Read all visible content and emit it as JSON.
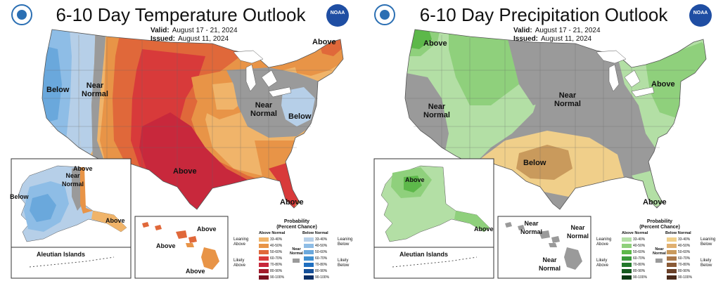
{
  "temperature": {
    "title": "6-10 Day Temperature Outlook",
    "valid_label": "Valid:",
    "valid_value": "August 17 - 21, 2024",
    "issued_label": "Issued:",
    "issued_value": "August 11, 2024",
    "labels": {
      "below_west": "Below",
      "near_west": "Near\nNormal",
      "near_east": "Near\nNormal",
      "below_east": "Below",
      "above_south": "Above",
      "above_ne": "Above",
      "above_fl": "Above",
      "ak_above": "Above",
      "ak_near": "Near\nNormal",
      "ak_below": "Below",
      "ak_above_se": "Above",
      "hi_above1": "Above",
      "hi_above2": "Above",
      "hi_above3": "Above",
      "aleutian": "Aleutian Islands"
    },
    "colors": {
      "below_33": "#b6cfe8",
      "below_40": "#8ebde6",
      "below_50": "#6aa8dc",
      "near": "#9a9a9a",
      "above_33": "#f0b46a",
      "above_40": "#e89447",
      "above_50": "#e0683a",
      "above_60": "#d83a3a",
      "above_70": "#c8283c"
    }
  },
  "precipitation": {
    "title": "6-10 Day Precipitation Outlook",
    "valid_label": "Valid:",
    "valid_value": "August 17 - 21, 2024",
    "issued_label": "Issued:",
    "issued_value": "August 11, 2024",
    "labels": {
      "above_nw": "Above",
      "near_west": "Near\nNormal",
      "near_central": "Near\nNormal",
      "above_east": "Above",
      "below_south": "Below",
      "above_fl": "Above",
      "ak_above": "Above",
      "ak_above_se": "Above",
      "hi_near1": "Near\nNormal",
      "hi_near2": "Near\nNormal",
      "hi_near3": "Near\nNormal",
      "aleutian": "Aleutian Islands"
    },
    "colors": {
      "above_33": "#b3dfa5",
      "above_40": "#8fd07c",
      "above_50": "#5db84a",
      "near": "#9a9a9a",
      "below_33": "#f0cf8a",
      "below_40": "#c99a5c"
    }
  },
  "legend": {
    "title": "Probability\n(Percent Chance)",
    "temp_left_header": "Above Normal",
    "temp_right_header": "Below Normal",
    "temp_left_top": "Leaning\nAbove",
    "temp_left_bottom": "Likely\nAbove",
    "temp_right_top": "Leaning\nBelow",
    "temp_right_bottom": "Likely\nBelow",
    "precip_left_top": "Leaning\nAbove",
    "precip_left_bottom": "Likely\nAbove",
    "precip_right_top": "Leaning\nBelow",
    "precip_right_bottom": "Likely\nBelow",
    "near": "Near\nNormal",
    "ranges": [
      "33-40%",
      "40-50%",
      "50-60%",
      "60-70%",
      "70-80%",
      "80-90%",
      "90-100%"
    ],
    "temp_above_colors": [
      "#f0b46a",
      "#e89447",
      "#e0683a",
      "#d83a3a",
      "#c8283c",
      "#a31c2c",
      "#7a1020"
    ],
    "temp_below_colors": [
      "#b6cfe8",
      "#8ebde6",
      "#6aa8dc",
      "#3f8fd0",
      "#1f6fc0",
      "#154f98",
      "#0c2f66"
    ],
    "precip_above_colors": [
      "#b3dfa5",
      "#8fd07c",
      "#5db84a",
      "#3a9a3a",
      "#237a2c",
      "#155a1e",
      "#0a3a12"
    ],
    "precip_below_colors": [
      "#f0cf8a",
      "#e0b070",
      "#c99a5c",
      "#a9784a",
      "#8a5a36",
      "#6a4028",
      "#4a2a1a"
    ]
  }
}
